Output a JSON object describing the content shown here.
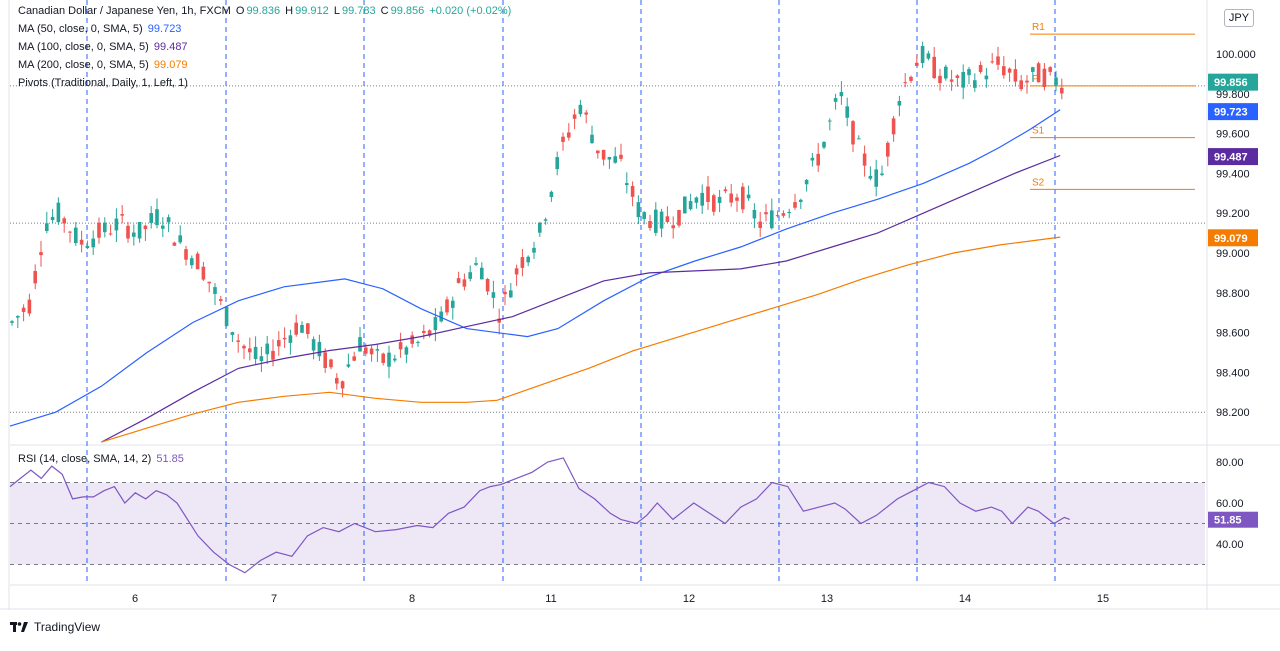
{
  "legend": {
    "symbol": "Canadian Dollar / Japanese Yen, 1h, FXCM",
    "o_label": "O",
    "o_val": "99.836",
    "h_label": "H",
    "h_val": "99.912",
    "l_label": "L",
    "l_val": "99.783",
    "c_label": "C",
    "c_val": "99.856",
    "change": "+0.020 (+0.02%)",
    "ma50_label": "MA (50, close, 0, SMA, 5)",
    "ma50_val": "99.723",
    "ma100_label": "MA (100, close, 0, SMA, 5)",
    "ma100_val": "99.487",
    "ma200_label": "MA (200, close, 0, SMA, 5)",
    "ma200_val": "99.079",
    "pivots_label": "Pivots (Traditional, Daily, 1, Left, 1)",
    "rsi_label": "RSI (14, close, SMA, 14, 2)",
    "rsi_val": "51.85"
  },
  "currency_badge": "JPY",
  "footer": {
    "brand": "TradingView"
  },
  "colors": {
    "up": "#26a69a",
    "down": "#ef5350",
    "ma50": "#2962ff",
    "ma100": "#5b2c9f",
    "ma200": "#f57c00",
    "pivot": "#f57c00",
    "rsi": "#7e57c2",
    "price_tag": "#26a69a",
    "rsi_band": "#ede7f6"
  },
  "chart_data": [
    {
      "type": "candlestick",
      "title": "Canadian Dollar / Japanese Yen, 1h, FXCM",
      "x_tick_labels": [
        "6",
        "7",
        "8",
        "11",
        "12",
        "13",
        "14",
        "15"
      ],
      "y_tick_labels": [
        "98.200",
        "98.400",
        "98.600",
        "98.800",
        "99.000",
        "99.200",
        "99.400",
        "99.600",
        "99.800",
        "100.000"
      ],
      "ylim": [
        98.1,
        100.2
      ],
      "last_price": 99.856,
      "price_tags": [
        {
          "label": "99.856",
          "value": 99.856,
          "color": "#26a69a"
        },
        {
          "label": "99.723",
          "value": 99.723,
          "color": "#2962ff"
        },
        {
          "label": "99.487",
          "value": 99.487,
          "color": "#5b2c9f"
        },
        {
          "label": "99.079",
          "value": 99.079,
          "color": "#f57c00"
        }
      ],
      "pivots": [
        {
          "label": "R1",
          "value": 100.1
        },
        {
          "label": "P",
          "value": 99.84
        },
        {
          "label": "S1",
          "value": 99.58
        },
        {
          "label": "S2",
          "value": 99.32
        }
      ],
      "dotted_levels": [
        98.2,
        99.15,
        99.84
      ],
      "series": [
        {
          "name": "MA 50",
          "values": [
            [
              0.0,
              98.13
            ],
            [
              0.3,
              98.2
            ],
            [
              0.6,
              98.33
            ],
            [
              0.9,
              98.5
            ],
            [
              1.2,
              98.65
            ],
            [
              1.5,
              98.76
            ],
            [
              1.8,
              98.83
            ],
            [
              2.1,
              98.86
            ],
            [
              2.2,
              98.87
            ],
            [
              2.45,
              98.82
            ],
            [
              2.7,
              98.72
            ],
            [
              3.0,
              98.62
            ],
            [
              3.4,
              98.58
            ],
            [
              3.6,
              98.62
            ],
            [
              3.9,
              98.76
            ],
            [
              4.2,
              98.88
            ],
            [
              4.5,
              98.96
            ],
            [
              4.8,
              99.03
            ],
            [
              5.1,
              99.12
            ],
            [
              5.4,
              99.2
            ],
            [
              5.7,
              99.27
            ],
            [
              6.0,
              99.35
            ],
            [
              6.3,
              99.45
            ],
            [
              6.5,
              99.53
            ],
            [
              6.7,
              99.62
            ],
            [
              6.9,
              99.72
            ]
          ]
        },
        {
          "name": "MA 100",
          "values": [
            [
              0.6,
              98.05
            ],
            [
              0.9,
              98.17
            ],
            [
              1.2,
              98.3
            ],
            [
              1.5,
              98.42
            ],
            [
              1.8,
              98.47
            ],
            [
              2.1,
              98.51
            ],
            [
              2.4,
              98.54
            ],
            [
              2.7,
              98.58
            ],
            [
              3.0,
              98.63
            ],
            [
              3.3,
              98.68
            ],
            [
              3.6,
              98.77
            ],
            [
              3.9,
              98.86
            ],
            [
              4.2,
              98.9
            ],
            [
              4.5,
              98.91
            ],
            [
              4.8,
              98.92
            ],
            [
              5.1,
              98.96
            ],
            [
              5.4,
              99.03
            ],
            [
              5.7,
              99.1
            ],
            [
              6.0,
              99.2
            ],
            [
              6.3,
              99.3
            ],
            [
              6.6,
              99.4
            ],
            [
              6.9,
              99.49
            ]
          ]
        },
        {
          "name": "MA 200",
          "values": [
            [
              0.6,
              98.05
            ],
            [
              0.9,
              98.12
            ],
            [
              1.2,
              98.19
            ],
            [
              1.5,
              98.25
            ],
            [
              1.8,
              98.28
            ],
            [
              2.1,
              98.3
            ],
            [
              2.4,
              98.27
            ],
            [
              2.7,
              98.25
            ],
            [
              3.0,
              98.25
            ],
            [
              3.2,
              98.26
            ],
            [
              3.5,
              98.34
            ],
            [
              3.8,
              98.42
            ],
            [
              4.1,
              98.51
            ],
            [
              4.4,
              98.58
            ],
            [
              4.7,
              98.65
            ],
            [
              5.0,
              98.72
            ],
            [
              5.3,
              98.79
            ],
            [
              5.6,
              98.87
            ],
            [
              5.9,
              98.94
            ],
            [
              6.2,
              99.0
            ],
            [
              6.5,
              99.04
            ],
            [
              6.9,
              99.08
            ]
          ]
        }
      ]
    },
    {
      "type": "line",
      "title": "RSI (14, close, SMA, 14, 2)",
      "y_tick_labels": [
        "40.00",
        "60.00",
        "80.00"
      ],
      "ylim": [
        20,
        86
      ],
      "bands": [
        30,
        50,
        70
      ],
      "last_value": 51.85,
      "series": [
        {
          "name": "RSI",
          "values": [
            [
              0.0,
              68
            ],
            [
              0.1,
              72
            ],
            [
              0.2,
              76
            ],
            [
              0.3,
              72
            ],
            [
              0.4,
              78
            ],
            [
              0.5,
              74
            ],
            [
              0.6,
              62
            ],
            [
              0.7,
              63
            ],
            [
              0.8,
              63
            ],
            [
              0.9,
              66
            ],
            [
              1.0,
              68
            ],
            [
              1.1,
              60
            ],
            [
              1.2,
              65
            ],
            [
              1.3,
              62
            ],
            [
              1.4,
              66
            ],
            [
              1.5,
              64
            ],
            [
              1.6,
              60
            ],
            [
              1.7,
              52
            ],
            [
              1.8,
              44
            ],
            [
              1.95,
              36
            ],
            [
              2.1,
              30
            ],
            [
              2.25,
              26
            ],
            [
              2.4,
              32
            ],
            [
              2.55,
              36
            ],
            [
              2.7,
              34
            ],
            [
              2.85,
              44
            ],
            [
              3.0,
              48
            ],
            [
              3.15,
              46
            ],
            [
              3.3,
              50
            ],
            [
              3.5,
              46
            ],
            [
              3.7,
              47
            ],
            [
              3.9,
              49
            ],
            [
              4.05,
              48
            ],
            [
              4.2,
              55
            ],
            [
              4.35,
              58
            ],
            [
              4.5,
              66
            ],
            [
              4.6,
              68
            ],
            [
              4.7,
              69
            ],
            [
              4.85,
              72
            ],
            [
              5.0,
              75
            ],
            [
              5.15,
              80
            ],
            [
              5.3,
              82
            ],
            [
              5.45,
              67
            ],
            [
              5.6,
              62
            ],
            [
              5.75,
              55
            ],
            [
              5.85,
              52
            ],
            [
              6.0,
              50
            ],
            [
              6.1,
              54
            ],
            [
              6.2,
              60
            ],
            [
              6.35,
              52
            ],
            [
              6.45,
              56
            ],
            [
              6.55,
              60
            ],
            [
              6.7,
              55
            ],
            [
              6.85,
              50
            ],
            [
              7.0,
              58
            ],
            [
              7.15,
              62
            ],
            [
              7.3,
              70
            ],
            [
              7.45,
              68
            ],
            [
              7.6,
              56
            ],
            [
              7.75,
              58
            ],
            [
              7.9,
              60
            ],
            [
              8.0,
              57
            ],
            [
              8.15,
              50
            ],
            [
              8.3,
              54
            ],
            [
              8.5,
              62
            ],
            [
              8.65,
              66
            ],
            [
              8.8,
              70
            ],
            [
              8.95,
              68
            ],
            [
              9.1,
              60
            ],
            [
              9.25,
              56
            ],
            [
              9.4,
              58
            ],
            [
              9.5,
              56
            ],
            [
              9.6,
              50
            ],
            [
              9.75,
              58
            ],
            [
              9.85,
              56
            ],
            [
              10.0,
              50
            ],
            [
              10.1,
              53
            ],
            [
              10.15,
              52
            ]
          ]
        }
      ]
    }
  ]
}
